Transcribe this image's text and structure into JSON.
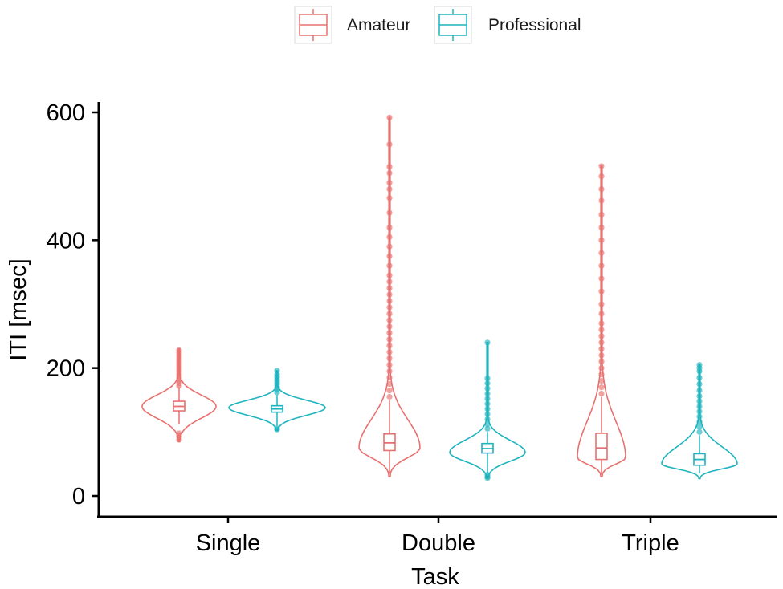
{
  "chart_data": {
    "type": "violin",
    "xlabel": "Task",
    "ylabel": "ITI [msec]",
    "ylim": [
      0,
      600
    ],
    "yticks": [
      0,
      200,
      400,
      600
    ],
    "categories": [
      "Single",
      "Double",
      "Triple"
    ],
    "legend": {
      "position": "top",
      "entries": [
        "Amateur",
        "Professional"
      ]
    },
    "grid": false,
    "series": [
      {
        "name": "Amateur",
        "color": "#E8716F",
        "groups": [
          {
            "category": "Single",
            "min": 85,
            "max": 230,
            "q1": 133,
            "median": 140,
            "q3": 148,
            "whisker_low": 112,
            "whisker_high": 170,
            "peak": 140,
            "max_half_width": 46,
            "outliers": [
              88,
              92,
              95,
              98,
              172,
              176,
              180,
              184,
              188,
              192,
              196,
              200,
              204,
              208,
              212,
              216,
              220,
              224,
              228
            ]
          },
          {
            "category": "Double",
            "min": 30,
            "max": 592,
            "q1": 71,
            "median": 83,
            "q3": 97,
            "whisker_low": 35,
            "whisker_high": 150,
            "peak": 75,
            "max_half_width": 38,
            "outliers": [
              155,
              165,
              175,
              185,
              195,
              205,
              215,
              225,
              235,
              245,
              255,
              265,
              275,
              285,
              295,
              305,
              315,
              325,
              335,
              345,
              360,
              375,
              390,
              405,
              420,
              443,
              466,
              480,
              490,
              505,
              515,
              550,
              592
            ]
          },
          {
            "category": "Triple",
            "min": 30,
            "max": 516,
            "q1": 57,
            "median": 75,
            "q3": 98,
            "whisker_low": 33,
            "whisker_high": 155,
            "peak": 60,
            "max_half_width": 30,
            "outliers": [
              160,
              170,
              180,
              190,
              200,
              210,
              220,
              230,
              240,
              250,
              260,
              270,
              285,
              300,
              320,
              340,
              360,
              380,
              400,
              420,
              440,
              462,
              480,
              500,
              516
            ]
          }
        ]
      },
      {
        "name": "Professional",
        "color": "#1EB4BE",
        "groups": [
          {
            "category": "Single",
            "min": 102,
            "max": 196,
            "q1": 131,
            "median": 136,
            "q3": 141,
            "whisker_low": 110,
            "whisker_high": 158,
            "peak": 138,
            "max_half_width": 60,
            "outliers": [
              104,
              106,
              162,
              166,
              170,
              174,
              178,
              182,
              186,
              190,
              196
            ]
          },
          {
            "category": "Double",
            "min": 27,
            "max": 240,
            "q1": 67,
            "median": 74,
            "q3": 82,
            "whisker_low": 35,
            "whisker_high": 100,
            "peak": 68,
            "max_half_width": 47,
            "outliers": [
              28,
              30,
              33,
              105,
              112,
              120,
              128,
              136,
              144,
              152,
              160,
              168,
              176,
              184,
              240
            ]
          },
          {
            "category": "Triple",
            "min": 27,
            "max": 205,
            "q1": 48,
            "median": 57,
            "q3": 66,
            "whisker_low": 35,
            "whisker_high": 95,
            "peak": 50,
            "max_half_width": 47,
            "outliers": [
              100,
              108,
              116,
              124,
              132,
              140,
              148,
              156,
              165,
              175,
              185,
              195,
              200,
              205
            ]
          }
        ]
      }
    ]
  }
}
